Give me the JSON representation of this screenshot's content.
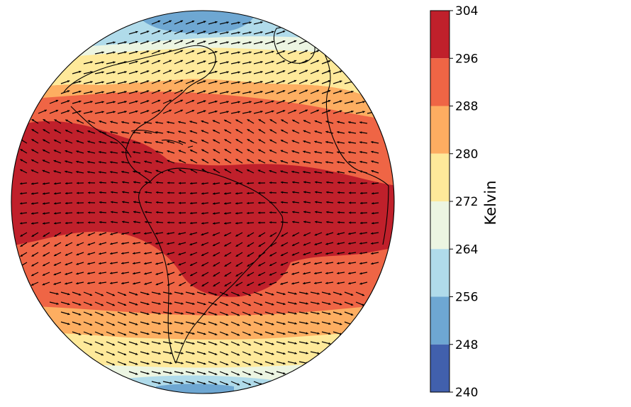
{
  "map": {
    "projection": "orthographic",
    "field": "surface air temperature",
    "overlay": "wind vectors (quiver)",
    "band_colors": [
      "#b2182b",
      "#ef6545",
      "#fdae61",
      "#fee99a",
      "#e9f4df",
      "#abd9e9",
      "#6aa6d0",
      "#3f5ea9"
    ],
    "land_outline_color": "#000000"
  },
  "colorbar": {
    "label": "Kelvin",
    "orientation": "vertical",
    "ticks": [
      "304",
      "296",
      "288",
      "280",
      "272",
      "264",
      "256",
      "248",
      "240"
    ],
    "bins": [
      {
        "from": 296,
        "to": 304,
        "color": "#c0202b"
      },
      {
        "from": 288,
        "to": 296,
        "color": "#ef6545"
      },
      {
        "from": 280,
        "to": 288,
        "color": "#fdad61"
      },
      {
        "from": 272,
        "to": 280,
        "color": "#fee99a"
      },
      {
        "from": 264,
        "to": 272,
        "color": "#ecf5e2"
      },
      {
        "from": 256,
        "to": 264,
        "color": "#b0dbea"
      },
      {
        "from": 248,
        "to": 256,
        "color": "#6ea7d2"
      },
      {
        "from": 240,
        "to": 248,
        "color": "#4160ad"
      }
    ]
  }
}
